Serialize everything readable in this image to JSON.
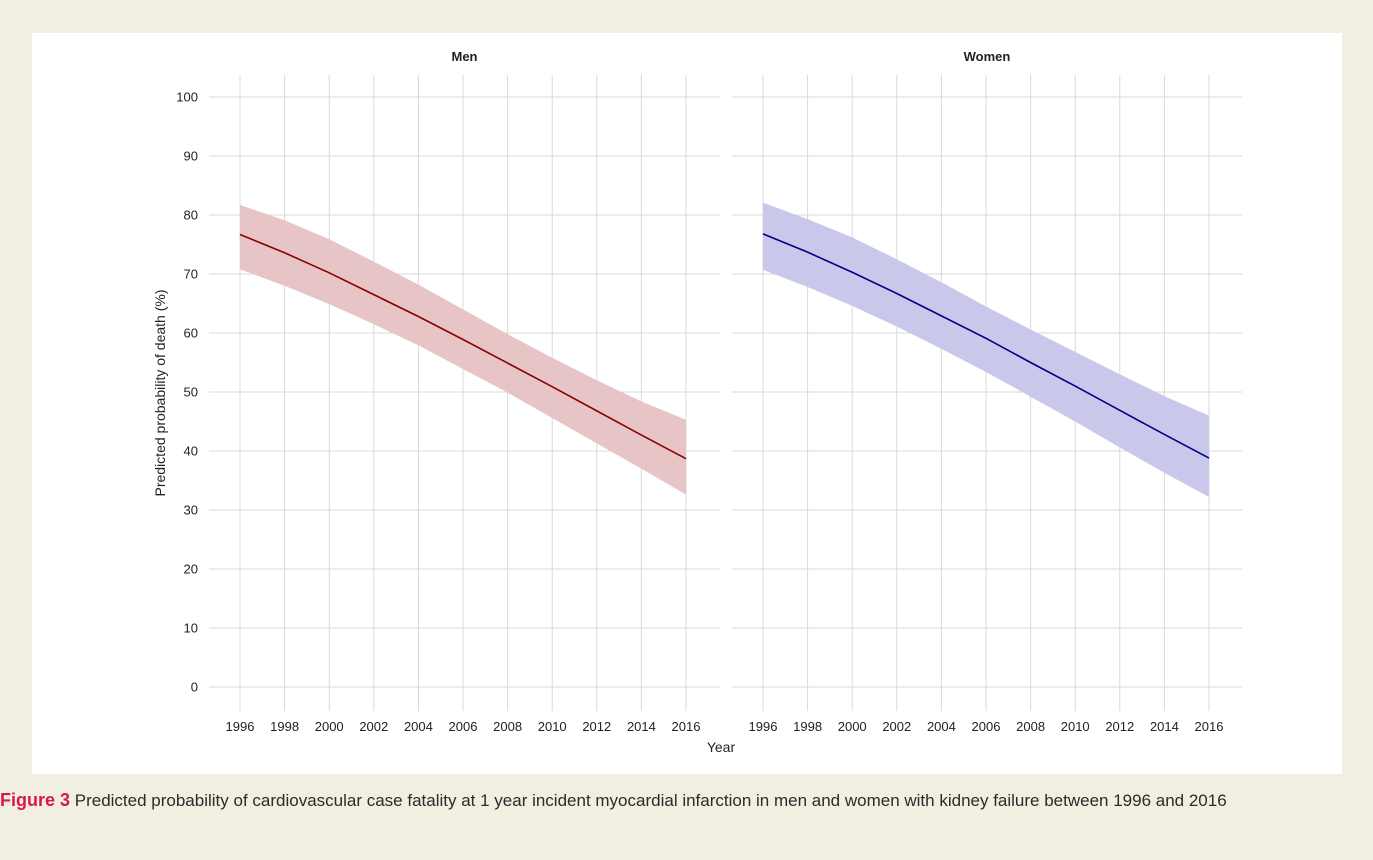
{
  "caption": {
    "label": "Figure 3",
    "text": " Predicted probability of cardiovascular case fatality at 1 year incident myocardial infarction in men and women with kidney failure between 1996 and 2016"
  },
  "colors": {
    "men_line": "#8b0000",
    "men_band": "#e7c4c6",
    "women_line": "#00008b",
    "women_band": "#c9c8ea",
    "grid": "#d9d9d9"
  },
  "chart_data": {
    "type": "line",
    "xlabel": "Year",
    "ylabel": "Predicted probability of death (%)",
    "xlim": [
      1996,
      2016
    ],
    "ylim": [
      0,
      100
    ],
    "xticks": [
      1996,
      1998,
      2000,
      2002,
      2004,
      2006,
      2008,
      2010,
      2012,
      2014,
      2016
    ],
    "yticks": [
      0,
      10,
      20,
      30,
      40,
      50,
      60,
      70,
      80,
      90,
      100
    ],
    "grid": true,
    "panels": [
      {
        "title": "Men",
        "x": [
          1996,
          1998,
          2000,
          2002,
          2004,
          2006,
          2008,
          2010,
          2012,
          2014,
          2016
        ],
        "y": [
          76.7,
          73.6,
          70.2,
          66.5,
          62.8,
          58.9,
          54.9,
          50.9,
          46.8,
          42.7,
          38.7
        ],
        "lower": [
          70.8,
          68.0,
          64.9,
          61.5,
          57.9,
          53.9,
          49.9,
          45.6,
          41.3,
          37.0,
          32.6
        ],
        "upper": [
          81.7,
          79.1,
          75.9,
          72.1,
          68.2,
          64.0,
          59.8,
          55.8,
          52.0,
          48.4,
          45.3
        ]
      },
      {
        "title": "Women",
        "x": [
          1996,
          1998,
          2000,
          2002,
          2004,
          2006,
          2008,
          2010,
          2012,
          2014,
          2016
        ],
        "y": [
          76.8,
          73.7,
          70.3,
          66.7,
          62.9,
          59.1,
          55.0,
          51.0,
          46.9,
          42.8,
          38.8
        ],
        "lower": [
          70.7,
          67.8,
          64.6,
          61.1,
          57.3,
          53.4,
          49.2,
          45.0,
          40.6,
          36.3,
          32.2
        ],
        "upper": [
          82.1,
          79.3,
          76.2,
          72.5,
          68.6,
          64.5,
          60.6,
          56.8,
          53.0,
          49.3,
          46.0
        ]
      }
    ]
  }
}
